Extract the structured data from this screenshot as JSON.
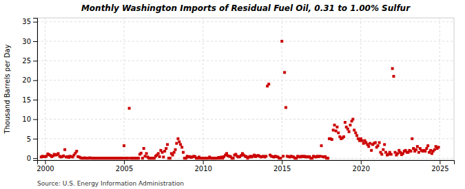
{
  "chart_data": {
    "type": "scatter",
    "title": "Monthly Washington Imports of Residual Fuel Oil, 0.31 to 1.00% Sulfur",
    "y_label": "Thousand Barrels per Day",
    "annotations": [
      "Source: U.S. Energy Information Administration"
    ],
    "color": "#cc0000",
    "marker": "square",
    "grid": true,
    "xlim": [
      1999.5,
      2025.9
    ],
    "ylim": [
      -0.5,
      36
    ],
    "xticks": [
      2000,
      2005,
      2010,
      2015,
      2020,
      2025
    ],
    "yticks": [
      0,
      5,
      10,
      15,
      20,
      25,
      30,
      35
    ],
    "x": [
      1999.75,
      1999.83,
      1999.92,
      2000.0,
      2000.08,
      2000.17,
      2000.25,
      2000.33,
      2000.42,
      2000.5,
      2000.58,
      2000.67,
      2000.75,
      2000.83,
      2000.92,
      2001.0,
      2001.08,
      2001.17,
      2001.25,
      2001.33,
      2001.42,
      2001.5,
      2001.58,
      2001.67,
      2001.75,
      2001.83,
      2001.92,
      2002.0,
      2002.08,
      2002.17,
      2002.25,
      2002.33,
      2002.42,
      2002.5,
      2002.58,
      2002.67,
      2002.75,
      2002.83,
      2002.92,
      2003.0,
      2003.08,
      2003.17,
      2003.25,
      2003.33,
      2003.42,
      2003.5,
      2003.58,
      2003.67,
      2003.75,
      2003.83,
      2003.92,
      2004.0,
      2004.08,
      2004.17,
      2004.25,
      2004.33,
      2004.42,
      2004.5,
      2004.58,
      2004.67,
      2004.75,
      2004.83,
      2004.92,
      2005.0,
      2005.08,
      2005.17,
      2005.25,
      2005.33,
      2005.42,
      2005.5,
      2005.58,
      2005.67,
      2005.75,
      2005.83,
      2005.92,
      2006.0,
      2006.08,
      2006.17,
      2006.25,
      2006.33,
      2006.42,
      2006.5,
      2006.58,
      2006.67,
      2006.75,
      2006.83,
      2006.92,
      2007.0,
      2007.08,
      2007.17,
      2007.25,
      2007.33,
      2007.42,
      2007.5,
      2007.58,
      2007.67,
      2007.75,
      2007.83,
      2007.92,
      2008.0,
      2008.08,
      2008.17,
      2008.25,
      2008.33,
      2008.42,
      2008.5,
      2008.58,
      2008.67,
      2008.75,
      2008.83,
      2008.92,
      2009.0,
      2009.08,
      2009.17,
      2009.25,
      2009.33,
      2009.42,
      2009.5,
      2009.58,
      2009.67,
      2009.75,
      2009.83,
      2009.92,
      2010.0,
      2010.08,
      2010.17,
      2010.25,
      2010.33,
      2010.42,
      2010.5,
      2010.58,
      2010.67,
      2010.75,
      2010.83,
      2010.92,
      2011.0,
      2011.08,
      2011.17,
      2011.25,
      2011.33,
      2011.42,
      2011.5,
      2011.58,
      2011.67,
      2011.75,
      2011.83,
      2011.92,
      2012.0,
      2012.08,
      2012.17,
      2012.25,
      2012.33,
      2012.42,
      2012.5,
      2012.58,
      2012.67,
      2012.75,
      2012.83,
      2012.92,
      2013.0,
      2013.08,
      2013.17,
      2013.25,
      2013.33,
      2013.42,
      2013.5,
      2013.58,
      2013.67,
      2013.75,
      2013.83,
      2013.92,
      2014.0,
      2014.08,
      2014.17,
      2014.25,
      2014.33,
      2014.42,
      2014.5,
      2014.58,
      2014.67,
      2014.75,
      2014.83,
      2014.92,
      2015.0,
      2015.08,
      2015.17,
      2015.25,
      2015.33,
      2015.42,
      2015.5,
      2015.58,
      2015.67,
      2015.75,
      2015.83,
      2015.92,
      2016.0,
      2016.08,
      2016.17,
      2016.25,
      2016.33,
      2016.42,
      2016.5,
      2016.58,
      2016.67,
      2016.75,
      2016.83,
      2016.92,
      2017.0,
      2017.08,
      2017.17,
      2017.25,
      2017.33,
      2017.42,
      2017.5,
      2017.58,
      2017.67,
      2017.75,
      2017.83,
      2017.92,
      2018.0,
      2018.08,
      2018.17,
      2018.25,
      2018.33,
      2018.42,
      2018.5,
      2018.58,
      2018.67,
      2018.75,
      2018.83,
      2018.92,
      2019.0,
      2019.08,
      2019.17,
      2019.25,
      2019.33,
      2019.42,
      2019.5,
      2019.58,
      2019.67,
      2019.75,
      2019.83,
      2019.92,
      2020.0,
      2020.08,
      2020.17,
      2020.25,
      2020.33,
      2020.42,
      2020.5,
      2020.58,
      2020.67,
      2020.75,
      2020.83,
      2020.92,
      2021.0,
      2021.08,
      2021.17,
      2021.25,
      2021.33,
      2021.42,
      2021.5,
      2021.58,
      2021.67,
      2021.75,
      2021.83,
      2021.92,
      2022.0,
      2022.08,
      2022.17,
      2022.25,
      2022.33,
      2022.42,
      2022.5,
      2022.58,
      2022.67,
      2022.75,
      2022.83,
      2022.92,
      2023.0,
      2023.08,
      2023.17,
      2023.25,
      2023.33,
      2023.42,
      2023.5,
      2023.58,
      2023.67,
      2023.75,
      2023.83,
      2023.92,
      2024.0,
      2024.08,
      2024.17,
      2024.25,
      2024.33,
      2024.42,
      2024.5,
      2024.58,
      2024.67,
      2024.75,
      2024.83,
      2024.92
    ],
    "values": [
      0.3,
      0.5,
      0.4,
      0.4,
      0.5,
      1.1,
      0.9,
      0.7,
      0.4,
      0.6,
      1.0,
      0.8,
      0.9,
      1.2,
      0.5,
      0.3,
      0.4,
      0.6,
      2.2,
      0.3,
      0.4,
      0.2,
      0.5,
      0.4,
      0.3,
      0.8,
      1.3,
      1.8,
      0.4,
      0.3,
      0.1,
      0.0,
      0.0,
      0.1,
      0.0,
      0.0,
      0.0,
      0.1,
      0.0,
      0.0,
      0.0,
      0.0,
      0.0,
      0.0,
      0.0,
      0.0,
      0.0,
      0.0,
      0.0,
      0.0,
      0.0,
      0.0,
      0.0,
      0.0,
      0.0,
      0.0,
      0.0,
      0.0,
      0.0,
      0.0,
      0.0,
      0.0,
      0.0,
      3.2,
      0.0,
      0.0,
      0.0,
      12.8,
      0.0,
      0.0,
      0.0,
      0.0,
      0.0,
      0.0,
      0.0,
      1.0,
      1.3,
      0.0,
      2.5,
      0.5,
      1.2,
      0.3,
      0.0,
      0.0,
      0.0,
      0.0,
      0.0,
      0.5,
      0.8,
      1.2,
      0.4,
      2.0,
      1.5,
      0.3,
      1.8,
      2.5,
      3.5,
      0.0,
      0.0,
      1.2,
      0.8,
      1.5,
      2.2,
      3.8,
      5.0,
      4.2,
      3.5,
      2.8,
      1.5,
      0.0,
      0.0,
      0.5,
      0.3,
      0.4,
      0.2,
      0.3,
      0.5,
      0.4,
      0.0,
      0.0,
      0.3,
      0.0,
      0.0,
      0.0,
      0.0,
      0.0,
      0.0,
      0.0,
      0.3,
      0.0,
      0.0,
      0.0,
      0.0,
      0.0,
      0.0,
      0.2,
      0.0,
      0.3,
      0.0,
      0.4,
      0.8,
      1.2,
      0.6,
      0.5,
      0.4,
      0.0,
      0.0,
      0.8,
      1.0,
      0.5,
      0.3,
      0.4,
      0.7,
      1.2,
      0.8,
      0.5,
      0.4,
      0.0,
      0.3,
      0.5,
      0.3,
      0.5,
      0.8,
      0.4,
      0.6,
      0.7,
      0.5,
      0.3,
      0.4,
      0.5,
      0.3,
      0.5,
      18.5,
      19.0,
      0.8,
      0.5,
      0.4,
      0.3,
      0.5,
      0.4,
      0.3,
      0.0,
      0.0,
      30.0,
      0.5,
      22.0,
      13.0,
      0.5,
      0.4,
      0.3,
      0.5,
      0.4,
      0.3,
      0.0,
      0.0,
      0.5,
      0.4,
      0.3,
      0.5,
      0.4,
      0.5,
      0.3,
      0.4,
      0.3,
      0.4,
      0.0,
      0.0,
      0.5,
      0.4,
      0.3,
      0.5,
      0.4,
      0.5,
      3.2,
      0.4,
      0.3,
      0.4,
      0.0,
      0.0,
      5.0,
      5.0,
      4.8,
      7.2,
      8.5,
      7.0,
      8.0,
      6.5,
      5.5,
      5.0,
      5.2,
      5.5,
      9.2,
      8.0,
      7.5,
      6.8,
      8.5,
      9.5,
      10.0,
      7.2,
      6.5,
      5.8,
      5.0,
      4.5,
      5.0,
      4.5,
      3.8,
      4.5,
      4.0,
      3.5,
      3.0,
      3.8,
      2.0,
      3.5,
      3.8,
      4.0,
      2.8,
      3.2,
      4.0,
      1.5,
      1.0,
      2.2,
      3.5,
      1.5,
      0.8,
      1.0,
      1.5,
      1.0,
      23.0,
      21.0,
      1.5,
      0.8,
      1.2,
      2.0,
      1.5,
      0.9,
      1.2,
      1.8,
      2.0,
      1.5,
      1.5,
      2.0,
      1.8,
      5.0,
      2.5,
      1.8,
      2.2,
      3.0,
      1.5,
      2.5,
      2.0,
      1.8,
      2.0,
      1.8,
      2.5,
      3.2,
      1.5,
      2.0,
      1.2,
      1.8,
      2.2,
      3.0,
      2.5,
      2.8
    ]
  }
}
